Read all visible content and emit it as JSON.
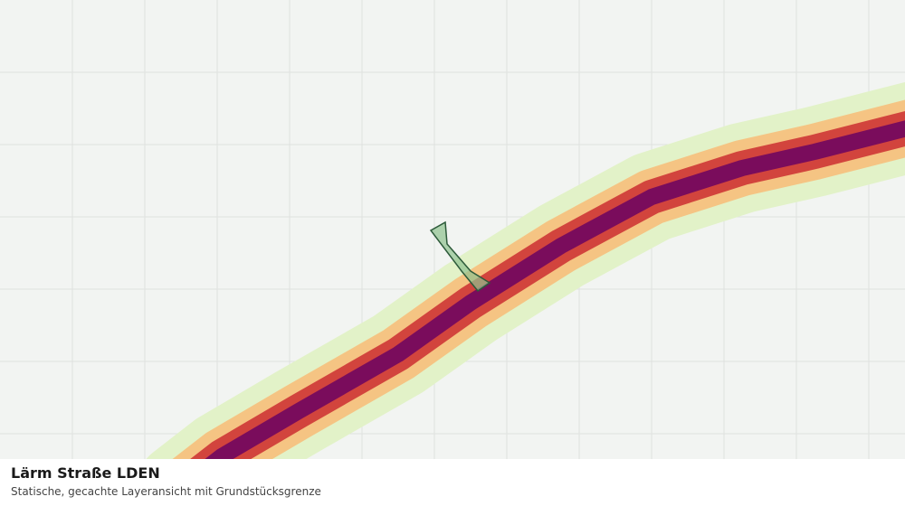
{
  "header": {
    "title": "Lärm Straße LDEN",
    "subtitle": "Statische, gecachte Layeransicht mit Grundstücksgrenze"
  }
}
